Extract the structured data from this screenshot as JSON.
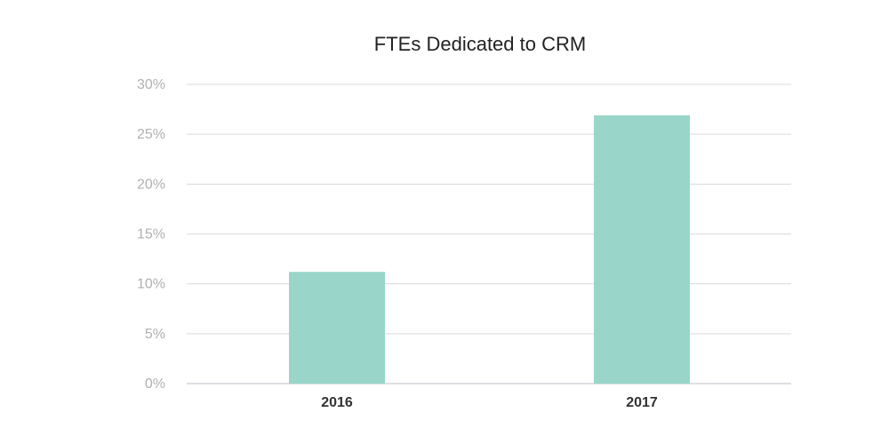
{
  "chart_data": {
    "type": "bar",
    "title": "FTEs Dedicated to CRM",
    "xlabel": "",
    "ylabel": "",
    "categories": [
      "2016",
      "2017"
    ],
    "values": [
      11.2,
      26.9
    ],
    "value_unit": "%",
    "ylim": [
      0,
      30
    ],
    "y_ticks": [
      "0%",
      "5%",
      "10%",
      "15%",
      "20%",
      "25%",
      "30%"
    ],
    "y_tick_values": [
      0,
      5,
      10,
      15,
      20,
      25,
      30
    ],
    "grid": true,
    "legend": "none",
    "bar_color": "#99d6c9"
  }
}
